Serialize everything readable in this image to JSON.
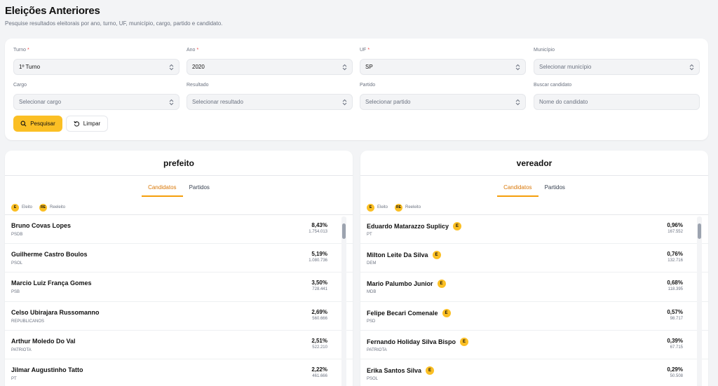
{
  "page": {
    "title": "Eleições Anteriores",
    "subtitle": "Pesquise resultados eleitorais por ano, turno, UF, município, cargo, partido e candidato."
  },
  "filters": {
    "turno": {
      "label": "Turno",
      "value": "1º Turno"
    },
    "ano": {
      "label": "Ano",
      "value": "2020"
    },
    "uf": {
      "label": "UF",
      "value": "SP"
    },
    "municipio": {
      "label": "Município",
      "placeholder": "Selecionar município"
    },
    "cargo": {
      "label": "Cargo",
      "placeholder": "Selecionar cargo"
    },
    "resultado": {
      "label": "Resultado",
      "placeholder": "Selecionar resultado"
    },
    "partido": {
      "label": "Partido",
      "placeholder": "Selecionar partido"
    },
    "candidato": {
      "label": "Buscar candidato",
      "placeholder": "Nome do candidato"
    },
    "required_mark": "*"
  },
  "actions": {
    "search": "Pesquisar",
    "clear": "Limpar"
  },
  "legend": {
    "elected": "Eleito",
    "reelected": "Reeleito",
    "elected_badge": "E",
    "reelected_badge": "RE"
  },
  "tabs": {
    "candidates": "Candidatos",
    "parties": "Partidos"
  },
  "panels": {
    "prefeito": {
      "title": "prefeito",
      "rows": [
        {
          "name": "Bruno Covas Lopes",
          "party": "PSDB",
          "pct": "8,43%",
          "votes": "1.754.013"
        },
        {
          "name": "Guilherme Castro Boulos",
          "party": "PSOL",
          "pct": "5,19%",
          "votes": "1.080.736"
        },
        {
          "name": "Marcio Luiz França Gomes",
          "party": "PSB",
          "pct": "3,50%",
          "votes": "728.441"
        },
        {
          "name": "Celso Ubirajara Russomanno",
          "party": "REPUBLICANOS",
          "pct": "2,69%",
          "votes": "560.666"
        },
        {
          "name": "Arthur Moledo Do Val",
          "party": "PATRIOTA",
          "pct": "2,51%",
          "votes": "522.210"
        },
        {
          "name": "Jilmar Augustinho Tatto",
          "party": "PT",
          "pct": "2,22%",
          "votes": "461.666"
        }
      ]
    },
    "vereador": {
      "title": "vereador",
      "badge": "E",
      "rows": [
        {
          "name": "Eduardo Matarazzo Suplicy",
          "party": "PT",
          "pct": "0,96%",
          "votes": "167.552"
        },
        {
          "name": "Milton Leite Da Silva",
          "party": "DEM",
          "pct": "0,76%",
          "votes": "132.716"
        },
        {
          "name": "Mario Palumbo Junior",
          "party": "MDB",
          "pct": "0,68%",
          "votes": "118.395"
        },
        {
          "name": "Felipe Becari Comenale",
          "party": "PSD",
          "pct": "0,57%",
          "votes": "98.717"
        },
        {
          "name": "Fernando Holiday Silva Bispo",
          "party": "PATRIOTA",
          "pct": "0,39%",
          "votes": "67.715"
        },
        {
          "name": "Erika Santos Silva",
          "party": "PSOL",
          "pct": "0,29%",
          "votes": "50.508"
        }
      ]
    }
  }
}
